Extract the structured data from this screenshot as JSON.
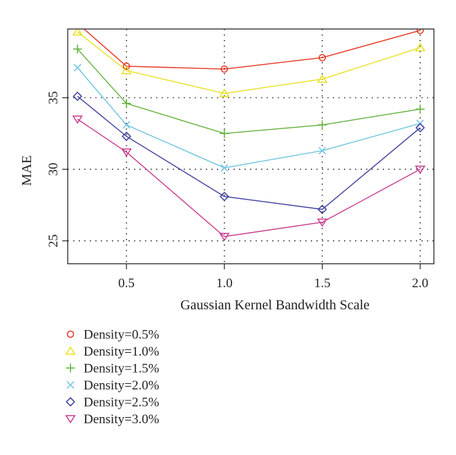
{
  "chart_data": {
    "type": "line",
    "xlabel": "Gaussian Kernel Bandwidth Scale",
    "ylabel": "MAE",
    "xlim": [
      0.2,
      2.07
    ],
    "ylim": [
      23.4,
      39.8
    ],
    "x_ticks": [
      0.5,
      1.0,
      1.5,
      2.0
    ],
    "x_tick_labels": [
      "0.5",
      "1.0",
      "1.5",
      "2.0"
    ],
    "y_ticks": [
      25,
      30,
      35
    ],
    "y_tick_labels": [
      "25",
      "30",
      "35"
    ],
    "grid": "dotted",
    "legend_position": "bottom-left, outside plot",
    "x": [
      0.25,
      0.5,
      1.0,
      1.5,
      2.0
    ],
    "series": [
      {
        "name": "Density=0.5%",
        "color": "#e8321e",
        "marker": "circle",
        "values": [
          40.2,
          37.2,
          37.0,
          37.8,
          39.7
        ]
      },
      {
        "name": "Density=1.0%",
        "color": "#e8e020",
        "marker": "triangle-up",
        "values": [
          39.6,
          36.9,
          35.3,
          36.3,
          38.5
        ]
      },
      {
        "name": "Density=1.5%",
        "color": "#62b03a",
        "marker": "plus",
        "values": [
          38.4,
          34.6,
          32.5,
          33.1,
          34.2
        ]
      },
      {
        "name": "Density=2.0%",
        "color": "#6ec3e0",
        "marker": "cross",
        "values": [
          37.1,
          33.1,
          30.1,
          31.3,
          33.2
        ]
      },
      {
        "name": "Density=2.5%",
        "color": "#3d3d9e",
        "marker": "diamond",
        "values": [
          35.1,
          32.3,
          28.1,
          27.2,
          32.9
        ]
      },
      {
        "name": "Density=3.0%",
        "color": "#c93b8c",
        "marker": "triangle-down",
        "values": [
          33.5,
          31.2,
          25.3,
          26.3,
          30.0
        ]
      }
    ]
  }
}
